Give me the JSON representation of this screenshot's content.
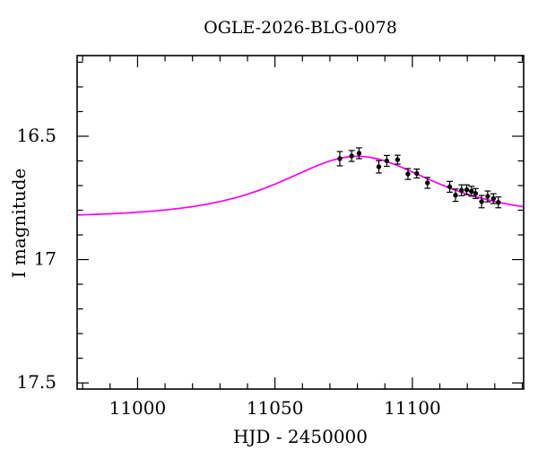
{
  "chart_data": {
    "type": "scatter",
    "title": "OGLE-2026-BLG-0078",
    "xlabel": "HJD - 2450000",
    "ylabel": "I magnitude",
    "grid": false,
    "y_axis_inverted": true,
    "x_range": [
      10978,
      11140.5
    ],
    "y_range_top_to_bottom": [
      16.173,
      17.525
    ],
    "x_major_ticks": [
      {
        "value": 11000,
        "label": "11000"
      },
      {
        "value": 11050,
        "label": "11050"
      },
      {
        "value": 11100,
        "label": "11100"
      }
    ],
    "x_minor_step": 10,
    "y_major_ticks": [
      {
        "value": 16.5,
        "label": "16.5"
      },
      {
        "value": 17.0,
        "label": "17"
      },
      {
        "value": 17.5,
        "label": "17.5"
      }
    ],
    "y_minor_step": 0.1,
    "model_curve": {
      "name": "microlensing-model",
      "color": "#ff00ee",
      "baseline_mag": 16.83,
      "peak_mag": 16.58,
      "t0": 11080,
      "tE": 30.8,
      "u0": 1.14
    },
    "points": {
      "color": "#000000",
      "marker": "filled-circle",
      "columns": [
        "hjd_minus_2450000",
        "i_magnitude",
        "error"
      ],
      "data": [
        [
          11073.6,
          16.591,
          0.029
        ],
        [
          11077.9,
          16.58,
          0.022
        ],
        [
          11080.6,
          16.569,
          0.022
        ],
        [
          11087.8,
          16.624,
          0.025
        ],
        [
          11090.7,
          16.6,
          0.022
        ],
        [
          11094.6,
          16.595,
          0.018
        ],
        [
          11098.4,
          16.653,
          0.022
        ],
        [
          11101.6,
          16.651,
          0.018
        ],
        [
          11105.5,
          16.689,
          0.022
        ],
        [
          11113.6,
          16.705,
          0.022
        ],
        [
          11115.7,
          16.739,
          0.025
        ],
        [
          11117.9,
          16.719,
          0.022
        ],
        [
          11119.8,
          16.717,
          0.02
        ],
        [
          11121.5,
          16.723,
          0.02
        ],
        [
          11123.0,
          16.732,
          0.02
        ],
        [
          11125.2,
          16.765,
          0.025
        ],
        [
          11127.4,
          16.744,
          0.022
        ],
        [
          11129.5,
          16.753,
          0.02
        ],
        [
          11131.3,
          16.768,
          0.022
        ]
      ]
    },
    "frame_color": "#000000"
  }
}
